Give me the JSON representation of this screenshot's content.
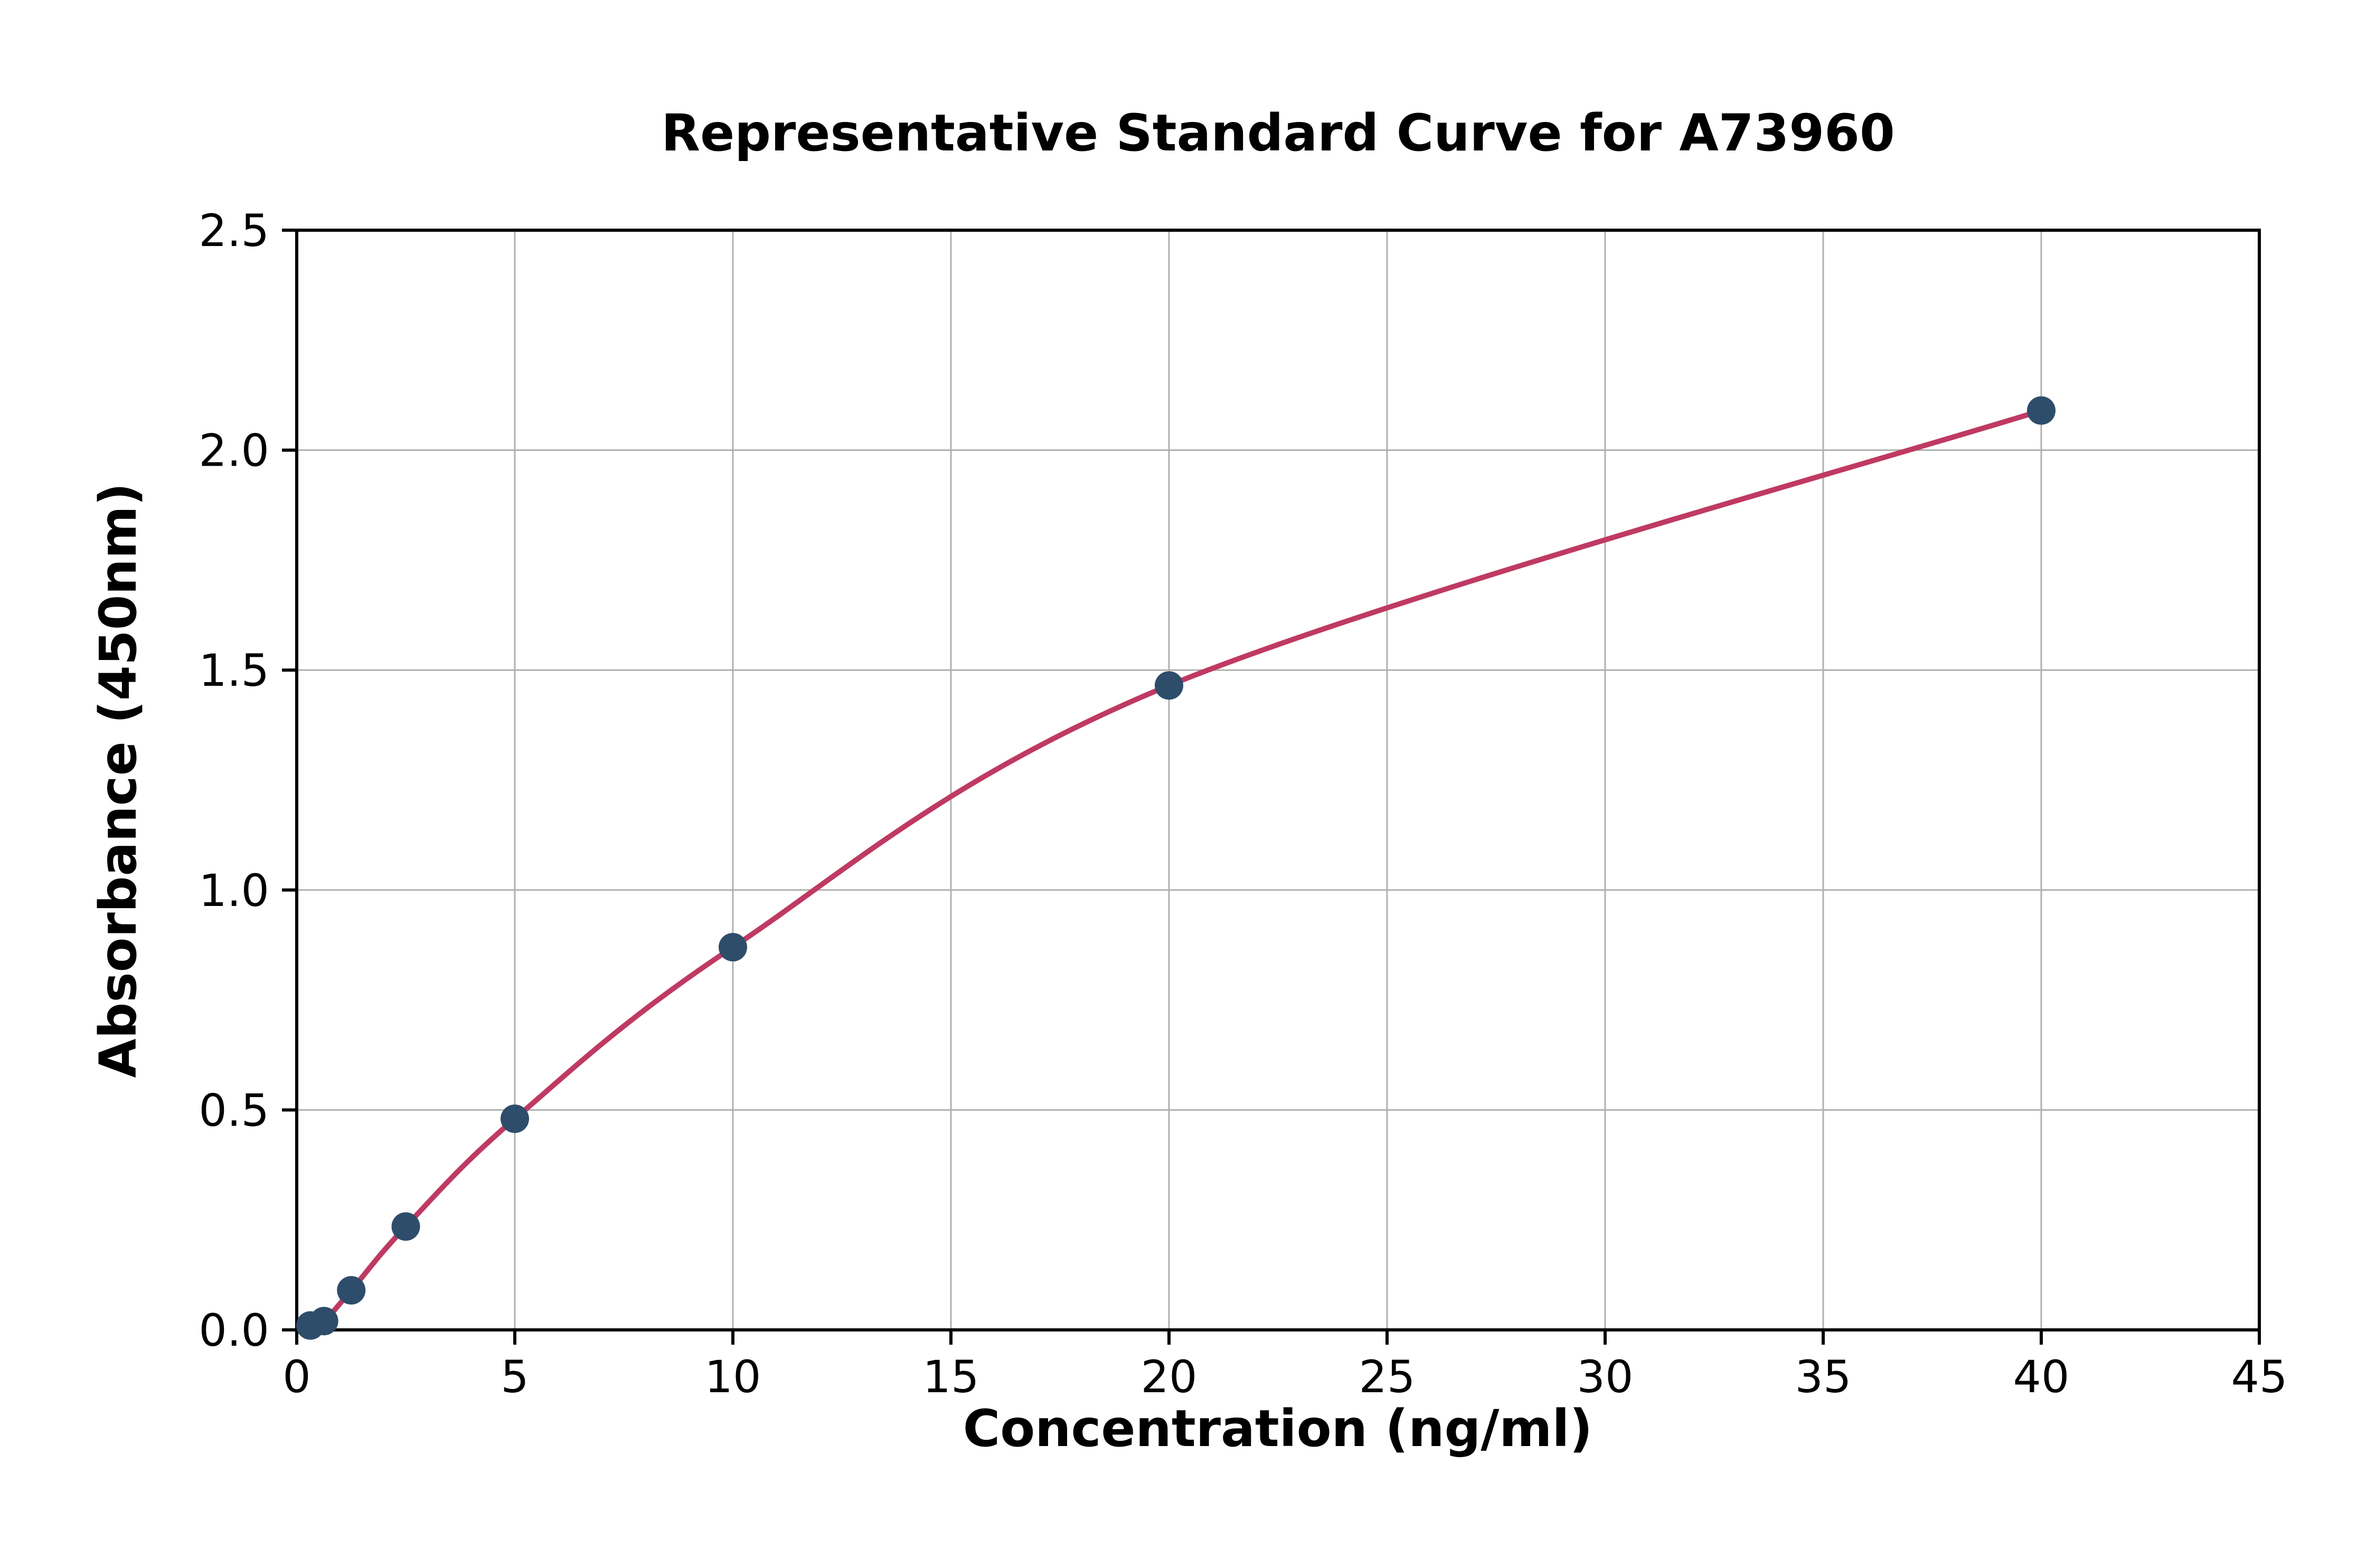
{
  "chart_data": {
    "type": "scatter",
    "title": "Representative Standard Curve for A73960",
    "xlabel": "Concentration (ng/ml)",
    "ylabel": "Absorbance (450nm)",
    "xlim": [
      0,
      45
    ],
    "ylim": [
      0,
      2.5
    ],
    "xticks": [
      0,
      5,
      10,
      15,
      20,
      25,
      30,
      35,
      40,
      45
    ],
    "xtick_labels": [
      "0",
      "5",
      "10",
      "15",
      "20",
      "25",
      "30",
      "35",
      "40",
      "45"
    ],
    "yticks": [
      0,
      0.5,
      1.0,
      1.5,
      2.0,
      2.5
    ],
    "ytick_labels": [
      "0.0",
      "0.5",
      "1.0",
      "1.5",
      "2.0",
      "2.5"
    ],
    "grid": true,
    "legend": "none",
    "series": [
      {
        "name": "standard-curve",
        "x": [
          0.313,
          0.625,
          1.25,
          2.5,
          5,
          10,
          20,
          40
        ],
        "y": [
          0.01,
          0.02,
          0.09,
          0.235,
          0.48,
          0.87,
          1.465,
          2.09
        ]
      }
    ],
    "curve_color": "#bf3a63",
    "point_color": "#2e4d6b",
    "grid_color": "#b0b0b0",
    "spine_color": "#000000",
    "text_color": "#000000",
    "background_color": "#ffffff"
  }
}
